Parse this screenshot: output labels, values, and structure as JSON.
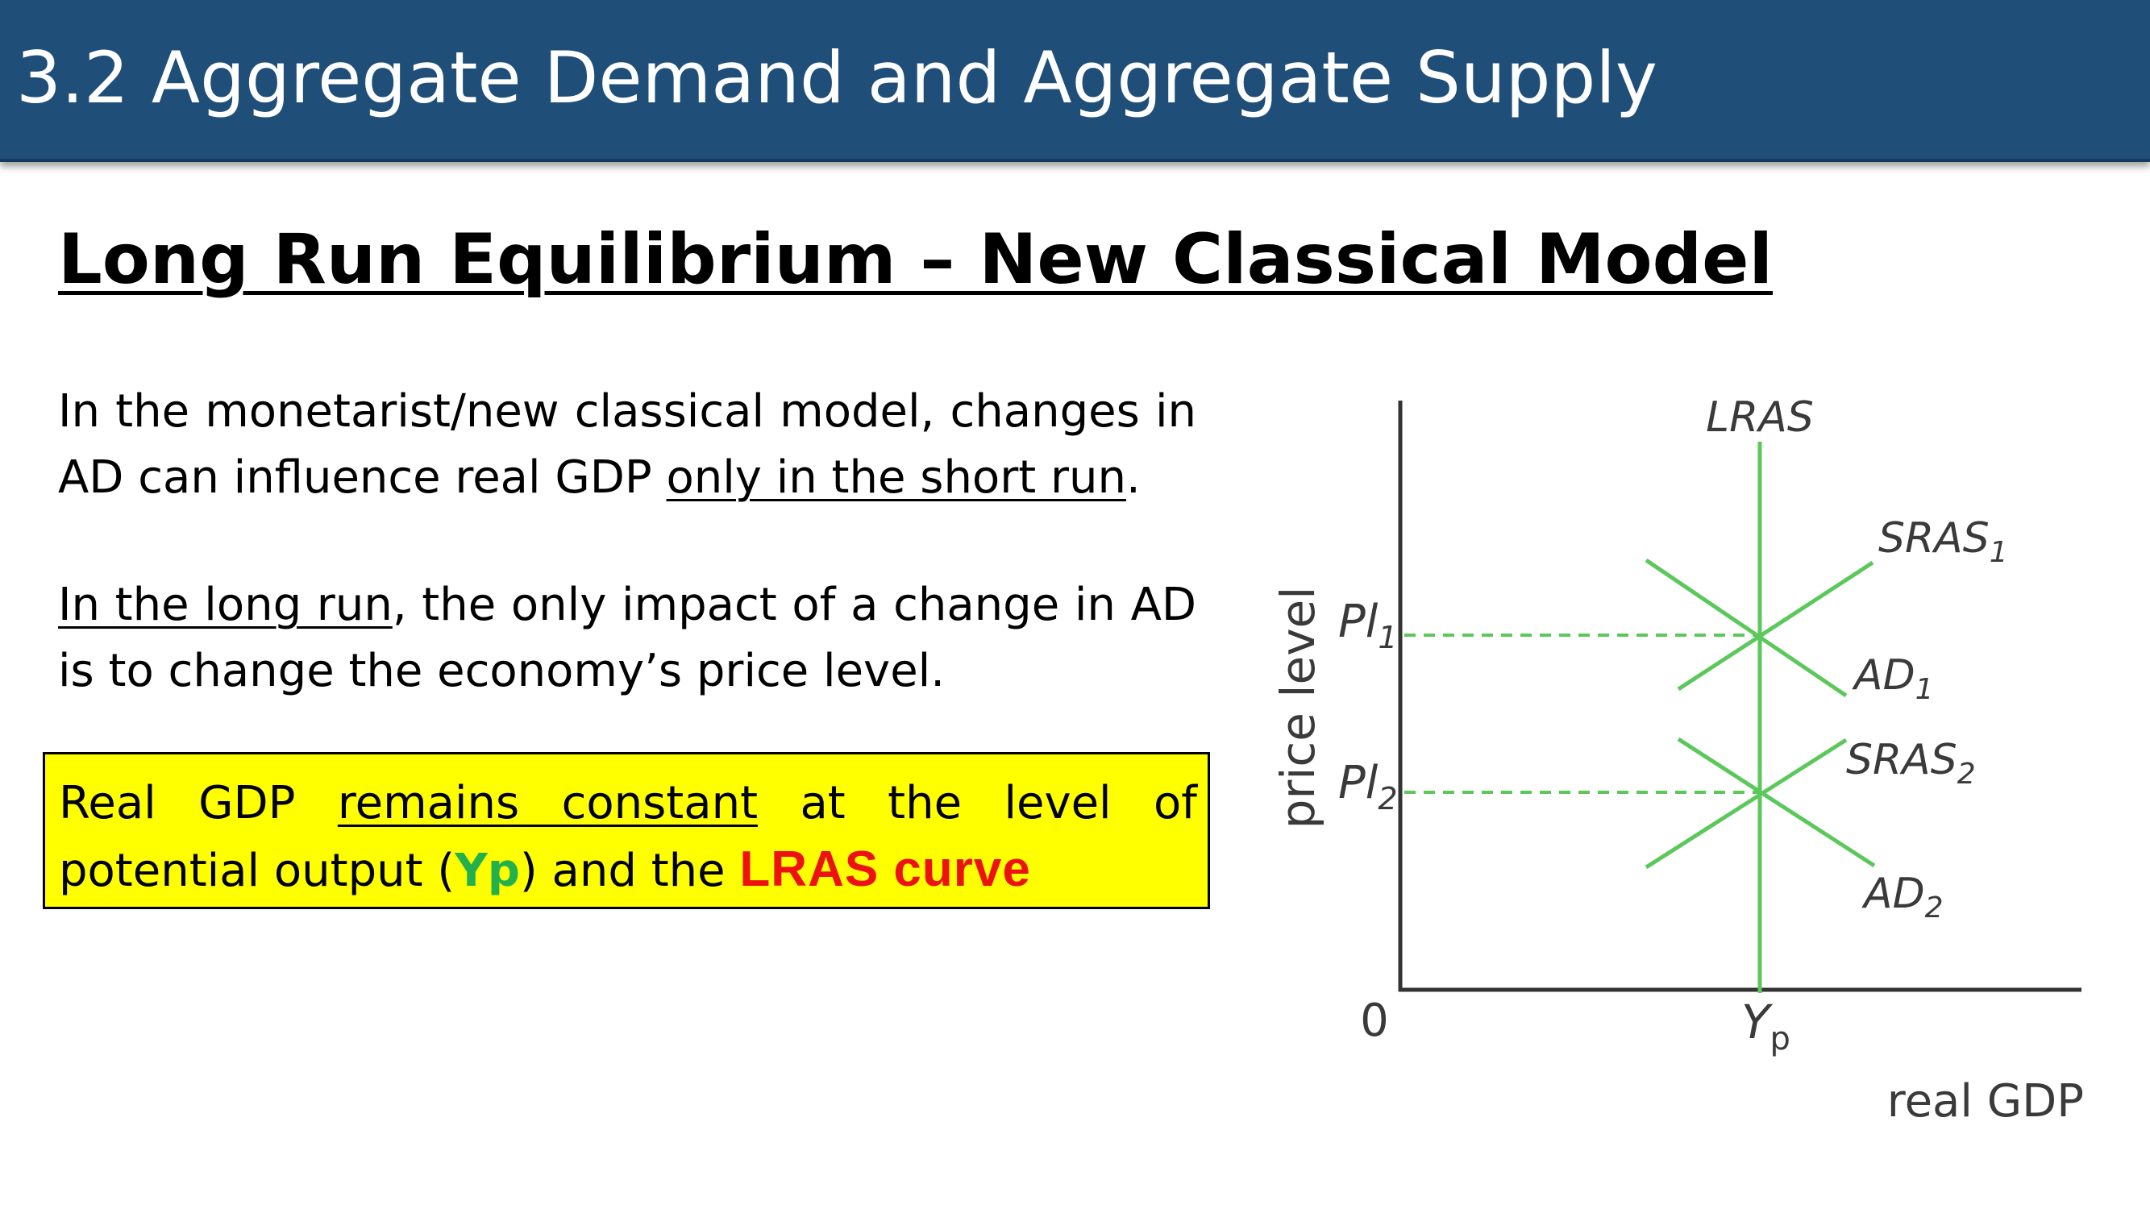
{
  "header": {
    "title": "3.2 Aggregate Demand and Aggregate Supply"
  },
  "slide": {
    "title": "Long Run Equilibrium – New Classical Model",
    "para1": {
      "before": "In the monetarist/new classical model, changes in AD can influence real GDP ",
      "underlined": "only in the short run",
      "after": "."
    },
    "para2": {
      "underlined": "In the long run",
      "after": ", the only impact of a change in AD is to change the economy’s price level."
    },
    "box": {
      "before": "Real GDP ",
      "underlined": "remains constant",
      "middle": " at the level of potential output (",
      "yp": "Yp",
      "after": ") and the ",
      "lras": "LRAS curve"
    }
  },
  "diagram": {
    "y_axis_label": "price level",
    "x_axis_label": "real GDP",
    "origin_label": "0",
    "lras_label": "LRAS",
    "pl1": {
      "main": "Pl",
      "sub": "1"
    },
    "pl2": {
      "main": "Pl",
      "sub": "2"
    },
    "sras1": {
      "main": "SRAS",
      "sub": "1"
    },
    "sras2": {
      "main": "SRAS",
      "sub": "2"
    },
    "ad1": {
      "main": "AD",
      "sub": "1"
    },
    "ad2": {
      "main": "AD",
      "sub": "2"
    },
    "yp": {
      "main": "Y",
      "sub": "p"
    },
    "curve_color": "#5cc85c",
    "axis_color": "#333333"
  }
}
